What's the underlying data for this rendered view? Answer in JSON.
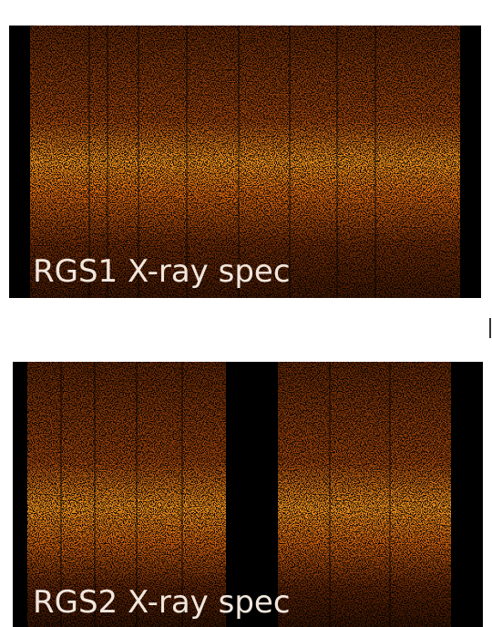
{
  "panels": [
    {
      "label": "RGS1 X-ray spec"
    },
    {
      "label": "RGS2 X-ray spec"
    }
  ]
}
